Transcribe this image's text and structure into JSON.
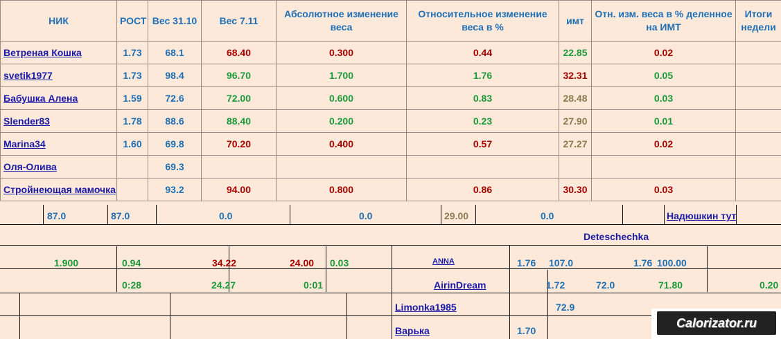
{
  "headers": {
    "nick": "НИК",
    "height": "РОСТ",
    "weight1": "Вес 31.10",
    "weight2": "Вес 7.11",
    "abs_change": "Абсолютное изменение веса",
    "rel_change": "Относительное  изменение веса в %",
    "bmi": "имт",
    "rel_bmi": "Отн.  изм. веса в % деленное на ИМТ",
    "totals": "Итоги недели"
  },
  "rows": [
    {
      "nick": "Ветреная Кошка",
      "height": "1.73",
      "w1": "68.1",
      "w2": "68.40",
      "abs": "0.300",
      "rel": "0.44",
      "bmi": "22.85",
      "rel_bmi": "0.02",
      "w2c": "red",
      "absc": "red",
      "relc": "red",
      "bmic": "green",
      "rbc": "red"
    },
    {
      "nick": "svetik1977",
      "height": "1.73",
      "w1": "98.4",
      "w2": "96.70",
      "abs": "1.700",
      "rel": "1.76",
      "bmi": "32.31",
      "rel_bmi": "0.05",
      "w2c": "green",
      "absc": "green",
      "relc": "green",
      "bmic": "red",
      "rbc": "green"
    },
    {
      "nick": "Бабушка Алена",
      "height": "1.59",
      "w1": "72.6",
      "w2": "72.00",
      "abs": "0.600",
      "rel": "0.83",
      "bmi": "28.48",
      "rel_bmi": "0.03",
      "w2c": "green",
      "absc": "green",
      "relc": "green",
      "bmic": "olive",
      "rbc": "green"
    },
    {
      "nick": "Slender83",
      "height": "1.78",
      "w1": "88.6",
      "w2": "88.40",
      "abs": "0.200",
      "rel": "0.23",
      "bmi": "27.90",
      "rel_bmi": "0.01",
      "w2c": "green",
      "absc": "green",
      "relc": "green",
      "bmic": "olive",
      "rbc": "green"
    },
    {
      "nick": "Marina34",
      "height": "1.60",
      "w1": "69.8",
      "w2": "70.20",
      "abs": "0.400",
      "rel": "0.57",
      "bmi": "27.27",
      "rel_bmi": "0.02",
      "w2c": "red",
      "absc": "red",
      "relc": "red",
      "bmic": "olive",
      "rbc": "red"
    },
    {
      "nick": "Оля-Олива",
      "height": "",
      "w1": "69.3",
      "w2": "",
      "abs": "",
      "rel": "",
      "bmi": "",
      "rel_bmi": "",
      "w2c": "red",
      "absc": "red",
      "relc": "red",
      "bmic": "red",
      "rbc": "red"
    },
    {
      "nick": "Стройнеющая мамочка",
      "height": "",
      "w1": "93.2",
      "w2": "94.00",
      "abs": "0.800",
      "rel": "0.86",
      "bmi": "30.30",
      "rel_bmi": "0.03",
      "w2c": "red",
      "absc": "red",
      "relc": "red",
      "bmic": "red",
      "rbc": "red"
    }
  ],
  "glitch": {
    "r1_a": "87.0",
    "r1_b": "87.0",
    "r1_c": "0.0",
    "r1_d": "0.0",
    "r1_e": "29.00",
    "r1_f": "0.0",
    "r1_nick": "Надюшкин тут",
    "r2_nick_a": "Deteschechka",
    "r3_a": "1.900",
    "r3_b": "0.94",
    "r3_c": "34.22",
    "r3_d": "24.00",
    "r3_e": "0.03",
    "r3_nick": "ANNA",
    "r3_f": "1.76",
    "r3_g": "107.0",
    "r3_h": "1.76",
    "r3_i": "100.00",
    "r4_a": "0:28",
    "r4_b": "24.27",
    "r4_c": "0:01",
    "r4_nick": "AirinDream",
    "r4_d": "1.72",
    "r4_e": "72.0",
    "r4_f": "71.80",
    "r4_g": "0.20",
    "r5_nick": "Limonka1985",
    "r5_w": "72.9",
    "r6_nick": "Варька",
    "r6_h": "1.70"
  },
  "logo": "Calorizator.ru"
}
